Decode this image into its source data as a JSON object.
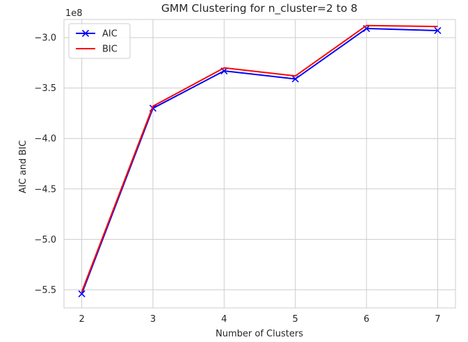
{
  "chart_data": {
    "type": "line",
    "title": "GMM Clustering for n_cluster=2 to 8",
    "xlabel": "Number of Clusters",
    "ylabel": "AIC and BIC",
    "y_offset_label": "1e8",
    "x": [
      2,
      3,
      4,
      5,
      6,
      7
    ],
    "x_ticks": [
      2,
      3,
      4,
      5,
      6,
      7
    ],
    "y_ticks": [
      -5.5,
      -5.0,
      -4.5,
      -4.0,
      -3.5,
      -3.0
    ],
    "y_tick_labels": [
      "−5.5",
      "−5.0",
      "−4.5",
      "−4.0",
      "−3.5",
      "−3.0"
    ],
    "xlim": [
      1.75,
      7.25
    ],
    "ylim": [
      -5.68,
      -2.82
    ],
    "grid": true,
    "legend_position": "upper left",
    "series": [
      {
        "name": "AIC",
        "color": "#0000ff",
        "marker": "x",
        "values": [
          -5.54,
          -3.7,
          -3.33,
          -3.41,
          -2.91,
          -2.93
        ]
      },
      {
        "name": "BIC",
        "color": "#ff0000",
        "marker": "none",
        "values": [
          -5.52,
          -3.68,
          -3.3,
          -3.38,
          -2.88,
          -2.89
        ]
      }
    ]
  }
}
